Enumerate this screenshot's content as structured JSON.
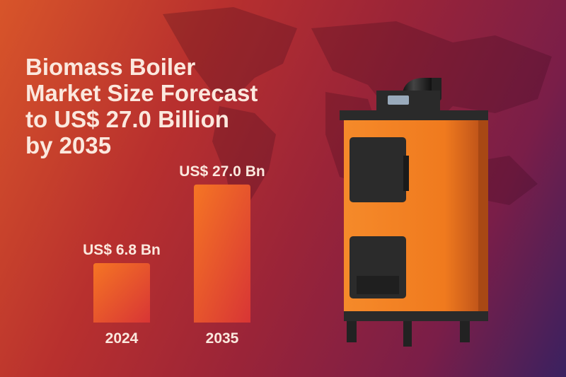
{
  "title_lines": [
    "Biomass Boiler",
    "Market Size Forecast",
    "to US$ 27.0 Billion",
    "by 2035"
  ],
  "chart_data": {
    "type": "bar",
    "title": "Biomass Boiler Market Size Forecast to US$ 27.0 Billion by 2035",
    "categories": [
      "2024",
      "2035"
    ],
    "values": [
      6.8,
      27.0
    ],
    "data_labels": [
      "US$ 6.8 Bn",
      "US$ 27.0 Bn"
    ],
    "unit": "US$ Bn",
    "grid": false,
    "bar_color_start": "#f57524",
    "bar_color_end": "#d83535"
  },
  "colors": {
    "text": "#fbe8de",
    "boiler_body": "#f07a1e",
    "boiler_dark": "#2a2a2a"
  }
}
